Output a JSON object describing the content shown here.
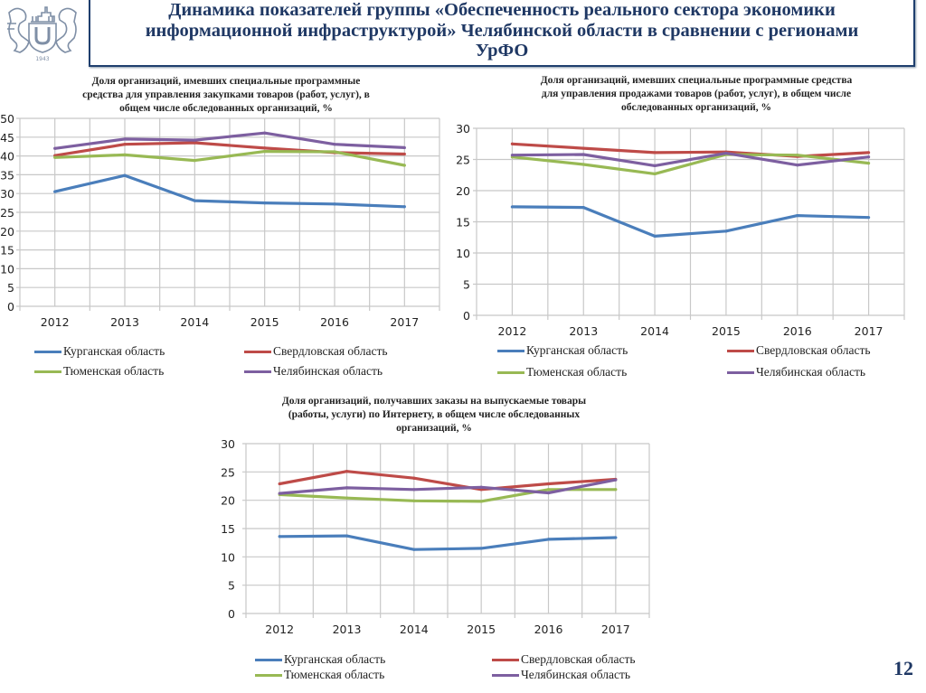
{
  "header": {
    "title_lines": [
      "Динамика показателей группы «Обеспеченность реального сектора экономики",
      "информационной инфраструктурой» Челябинской области в сравнении с регионами",
      "УрФО"
    ],
    "logo_year": "1943"
  },
  "page_number": "12",
  "colors": {
    "header_text": "#1f3864",
    "header_border": "#1f3f6e",
    "kurgan": "#4a7ebb",
    "sverdlovsk": "#be4b48",
    "tyumen": "#98b954",
    "chelyabinsk": "#7d5fa0",
    "grid": "#c8c8c8"
  },
  "chart_data": [
    {
      "type": "line",
      "title_lines": [
        "Доля организаций, имевших специальные программные",
        "средства для управления закупками товаров (работ, услуг), в",
        "общем числе обследованных организаций, %"
      ],
      "categories": [
        "2012",
        "2013",
        "2014",
        "2015",
        "2016",
        "2017"
      ],
      "yticks": [
        "0",
        "5",
        "10",
        "15",
        "20",
        "25",
        "30",
        "35",
        "40",
        "45",
        "50"
      ],
      "ylim": [
        0,
        50
      ],
      "xlabel": "",
      "ylabel": "",
      "grid": true,
      "legend_position": "bottom",
      "series": [
        {
          "name": "Курганская область",
          "color_key": "kurgan",
          "values": [
            30.5,
            34.8,
            28.1,
            27.5,
            27.2,
            26.5
          ]
        },
        {
          "name": "Свердловская область",
          "color_key": "sverdlovsk",
          "values": [
            40.1,
            43.1,
            43.5,
            42.1,
            40.9,
            40.5
          ]
        },
        {
          "name": "Тюменская область",
          "color_key": "tyumen",
          "values": [
            39.6,
            40.3,
            38.8,
            41.2,
            41.1,
            37.5
          ]
        },
        {
          "name": "Челябинская область",
          "color_key": "chelyabinsk",
          "values": [
            42.0,
            44.5,
            44.2,
            46.1,
            43.1,
            42.2
          ]
        }
      ]
    },
    {
      "type": "line",
      "title_lines": [
        "Доля организаций, имевших специальные программные средства",
        "для управления продажами товаров (работ, услуг), в общем числе",
        "обследованных организаций, %"
      ],
      "categories": [
        "2012",
        "2013",
        "2014",
        "2015",
        "2016",
        "2017"
      ],
      "yticks": [
        "0",
        "5",
        "10",
        "15",
        "20",
        "25",
        "30"
      ],
      "ylim": [
        0,
        30
      ],
      "xlabel": "",
      "ylabel": "",
      "grid": true,
      "legend_position": "bottom",
      "series": [
        {
          "name": "Курганская область",
          "color_key": "kurgan",
          "values": [
            17.4,
            17.3,
            12.7,
            13.5,
            16.0,
            15.7
          ]
        },
        {
          "name": "Свердловская область",
          "color_key": "sverdlovsk",
          "values": [
            27.5,
            26.8,
            26.1,
            26.2,
            25.5,
            26.1
          ]
        },
        {
          "name": "Тюменская область",
          "color_key": "tyumen",
          "values": [
            25.4,
            24.2,
            22.7,
            25.8,
            25.7,
            24.4
          ]
        },
        {
          "name": "Челябинская область",
          "color_key": "chelyabinsk",
          "values": [
            25.7,
            25.8,
            24.0,
            26.0,
            24.1,
            25.4
          ]
        }
      ]
    },
    {
      "type": "line",
      "title_lines": [
        "Доля организаций, получавших заказы на выпускаемые товары",
        "(работы, услуги) по Интернету, в общем числе обследованных",
        "организаций, %"
      ],
      "categories": [
        "2012",
        "2013",
        "2014",
        "2015",
        "2016",
        "2017"
      ],
      "yticks": [
        "0",
        "5",
        "10",
        "15",
        "20",
        "25",
        "30"
      ],
      "ylim": [
        0,
        30
      ],
      "xlabel": "",
      "ylabel": "",
      "grid": true,
      "legend_position": "bottom",
      "series": [
        {
          "name": "Курганская область",
          "color_key": "kurgan",
          "values": [
            13.6,
            13.7,
            11.3,
            11.5,
            13.1,
            13.4
          ]
        },
        {
          "name": "Свердловская область",
          "color_key": "sverdlovsk",
          "values": [
            22.9,
            25.1,
            23.9,
            21.9,
            22.9,
            23.7
          ]
        },
        {
          "name": "Тюменская область",
          "color_key": "tyumen",
          "values": [
            21.0,
            20.4,
            19.9,
            19.8,
            21.9,
            21.9
          ]
        },
        {
          "name": "Челябинская область",
          "color_key": "chelyabinsk",
          "values": [
            21.2,
            22.2,
            21.9,
            22.3,
            21.3,
            23.6
          ]
        }
      ]
    }
  ]
}
